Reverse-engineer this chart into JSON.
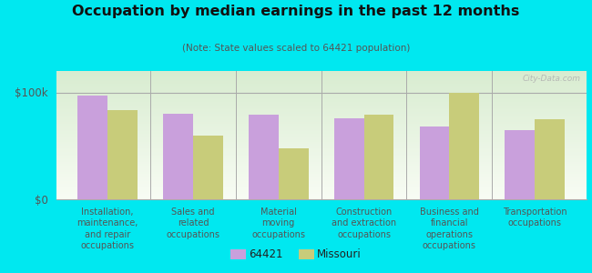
{
  "title": "Occupation by median earnings in the past 12 months",
  "subtitle": "(Note: State values scaled to 64421 population)",
  "categories": [
    "Installation,\nmaintenance,\nand repair\noccupations",
    "Sales and\nrelated\noccupations",
    "Material\nmoving\noccupations",
    "Construction\nand extraction\noccupations",
    "Business and\nfinancial\noperations\noccupations",
    "Transportation\noccupations"
  ],
  "values_64421": [
    97000,
    80000,
    79000,
    76000,
    68000,
    65000
  ],
  "values_missouri": [
    83000,
    60000,
    48000,
    79000,
    100000,
    75000
  ],
  "color_64421": "#c9a0dc",
  "color_missouri": "#c8cc7a",
  "bar_width": 0.35,
  "ylim": [
    0,
    120000
  ],
  "ytick_labels": [
    "$0",
    "$100k"
  ],
  "background_outer": "#00e8f0",
  "legend_label_1": "64421",
  "legend_label_2": "Missouri",
  "watermark": "City-Data.com"
}
